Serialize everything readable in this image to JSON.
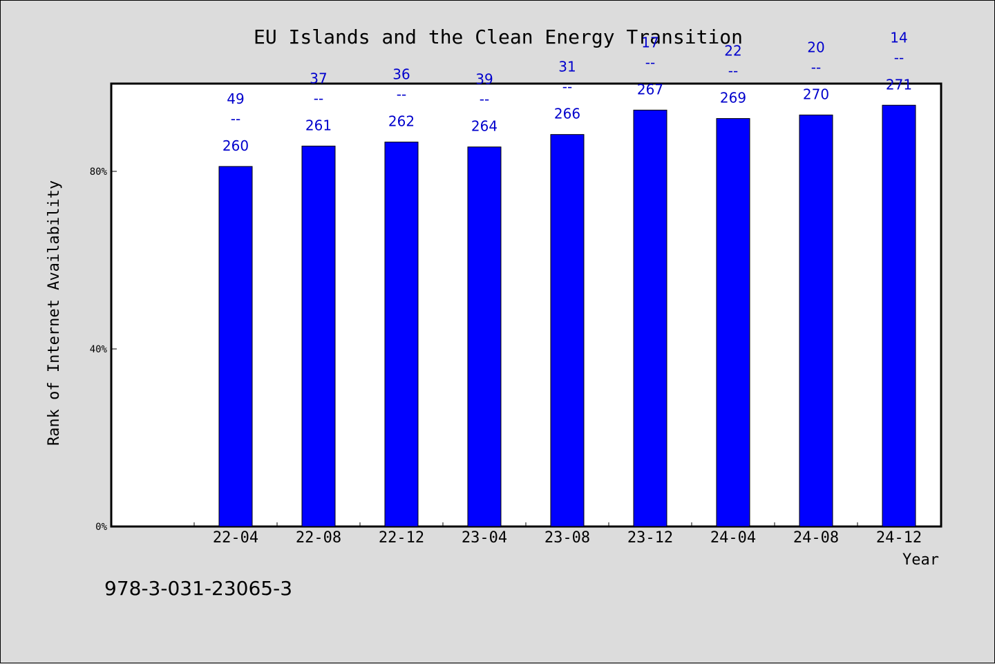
{
  "chart_data": {
    "type": "bar",
    "title": "EU Islands and the Clean Energy Transition",
    "xlabel": "Year",
    "ylabel": "Rank of Internet Availability",
    "categories": [
      "22-04",
      "22-08",
      "22-12",
      "23-04",
      "23-08",
      "23-12",
      "24-04",
      "24-08",
      "24-12"
    ],
    "values": [
      81.1,
      85.7,
      86.6,
      85.5,
      88.3,
      93.8,
      91.9,
      92.7,
      94.9
    ],
    "data_labels": [
      {
        "rank": "49",
        "sep": "--",
        "total": "260"
      },
      {
        "rank": "37",
        "sep": "--",
        "total": "261"
      },
      {
        "rank": "36",
        "sep": "--",
        "total": "262"
      },
      {
        "rank": "39",
        "sep": "--",
        "total": "264"
      },
      {
        "rank": "31",
        "sep": "--",
        "total": "266"
      },
      {
        "rank": "17",
        "sep": "--",
        "total": "267"
      },
      {
        "rank": "22",
        "sep": "--",
        "total": "269"
      },
      {
        "rank": "20",
        "sep": "--",
        "total": "270"
      },
      {
        "rank": "14",
        "sep": "--",
        "total": "271"
      }
    ],
    "yticks": [
      0,
      40,
      80
    ],
    "ytick_labels": [
      "0%",
      "40%",
      "80%"
    ],
    "ylim": [
      0,
      100
    ],
    "grid": false,
    "bar_color": "#0000ff",
    "label_color": "#0000cc"
  },
  "footnote": "978-3-031-23065-3"
}
